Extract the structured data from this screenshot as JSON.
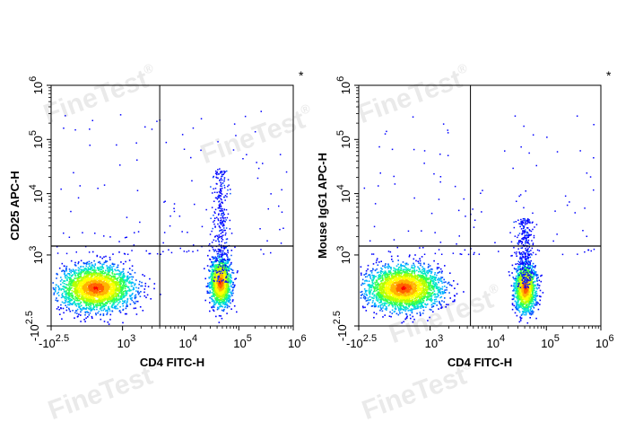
{
  "watermark": "FineTest",
  "watermark_mark": "®",
  "chart_data": [
    {
      "type": "scatter",
      "subtype": "flow-cytometry-density-dot-plot",
      "xlabel": "CD4 FITC-H",
      "ylabel": "CD25 APC-H",
      "x_scale": "biexponential",
      "y_scale": "biexponential",
      "xlim": [
        -316,
        1000000
      ],
      "ylim": [
        -316,
        1000000
      ],
      "x_ticks": [
        {
          "base": "-10",
          "exp": "2.5"
        },
        {
          "base": "10",
          "exp": "3"
        },
        {
          "base": "10",
          "exp": "4"
        },
        {
          "base": "10",
          "exp": "5"
        },
        {
          "base": "10",
          "exp": "6"
        }
      ],
      "y_ticks": [
        {
          "base": "-10",
          "exp": "2.5"
        },
        {
          "base": "10",
          "exp": "3"
        },
        {
          "base": "10",
          "exp": "4"
        },
        {
          "base": "10",
          "exp": "5"
        },
        {
          "base": "10",
          "exp": "6"
        }
      ],
      "quadrant_gate": {
        "x": 4000,
        "y": 1400
      },
      "annotation": "*",
      "populations": [
        {
          "name": "",
          "x_center": 500,
          "y_center": 400,
          "density": "high",
          "spread": "wide"
        },
        {
          "name": "",
          "x_center": 45000,
          "y_center": 500,
          "density": "high",
          "spread": "narrow",
          "tail_up_to": 30000
        }
      ],
      "color_scale": [
        "#0000ff",
        "#00c8ff",
        "#00ff64",
        "#ffff00",
        "#ff8000",
        "#ff0000"
      ],
      "grid": false
    },
    {
      "type": "scatter",
      "subtype": "flow-cytometry-density-dot-plot",
      "xlabel": "CD4 FITC-H",
      "ylabel": "Mouse IgG1 APC-H",
      "x_scale": "biexponential",
      "y_scale": "biexponential",
      "xlim": [
        -316,
        1000000
      ],
      "ylim": [
        -316,
        1000000
      ],
      "x_ticks": [
        {
          "base": "-10",
          "exp": "2.5"
        },
        {
          "base": "10",
          "exp": "3"
        },
        {
          "base": "10",
          "exp": "4"
        },
        {
          "base": "10",
          "exp": "5"
        },
        {
          "base": "10",
          "exp": "6"
        }
      ],
      "y_ticks": [
        {
          "base": "-10",
          "exp": "2.5"
        },
        {
          "base": "10",
          "exp": "3"
        },
        {
          "base": "10",
          "exp": "4"
        },
        {
          "base": "10",
          "exp": "5"
        },
        {
          "base": "10",
          "exp": "6"
        }
      ],
      "quadrant_gate": {
        "x": 4500,
        "y": 1400
      },
      "annotation": "*",
      "populations": [
        {
          "name": "",
          "x_center": 500,
          "y_center": 400,
          "density": "high",
          "spread": "wide"
        },
        {
          "name": "",
          "x_center": 40000,
          "y_center": 400,
          "density": "high",
          "spread": "narrow",
          "tail_up_to": 4000
        }
      ],
      "color_scale": [
        "#0000ff",
        "#00c8ff",
        "#00ff64",
        "#ffff00",
        "#ff8000",
        "#ff0000"
      ],
      "grid": false
    }
  ]
}
